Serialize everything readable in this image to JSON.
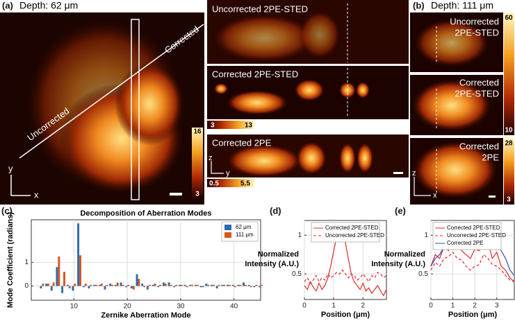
{
  "panel_a": {
    "label": "(a)",
    "depth": "Depth: 62 μm",
    "corrected": "Corrected",
    "uncorrected": "Uncorrected",
    "axis_y": "y",
    "axis_x": "x",
    "colorbar": [
      16,
      3
    ],
    "insets": [
      {
        "title": "Uncorrected 2PE-STED"
      },
      {
        "title": "Corrected 2PE-STED",
        "colorbar": [
          3,
          13
        ]
      },
      {
        "title": "Corrected 2PE",
        "colorbar": [
          0.5,
          5.5
        ],
        "axis_z": "z",
        "axis_y": "y"
      }
    ]
  },
  "panel_b": {
    "label": "(b)",
    "depth": "Depth: 111 μm",
    "axis_z": "z",
    "axis_x": "x",
    "images": [
      {
        "title": [
          "Uncorrected",
          "2PE-STED"
        ],
        "colorbar": [
          60,
          10
        ]
      },
      {
        "title": [
          "Corrected",
          "2PE-STED"
        ]
      },
      {
        "title": [
          "Corrected",
          "2PE"
        ],
        "colorbar": [
          28,
          3
        ]
      }
    ]
  },
  "chart_data": [
    {
      "type": "bar",
      "label": "(c)",
      "title": "Decomposition of Aberration Modes",
      "xlabel": "Zernike Aberration Mode",
      "ylabel": "Mode Coefficient (radians)",
      "x": [
        4,
        5,
        6,
        7,
        8,
        9,
        10,
        11,
        12,
        13,
        14,
        15,
        16,
        17,
        18,
        19,
        20,
        21,
        22,
        23,
        24,
        25,
        26,
        27,
        28,
        29,
        30,
        31,
        32,
        33,
        34,
        35,
        36,
        37,
        38,
        39,
        40,
        41,
        42,
        43,
        44,
        45
      ],
      "series": [
        {
          "name": "62 μm",
          "color": "#2b6cb0",
          "values": [
            -0.1,
            0.1,
            -0.2,
            0.8,
            -0.3,
            0.05,
            -0.2,
            2.65,
            -0.05,
            -0.1,
            0.05,
            0.05,
            -0.15,
            0.1,
            0.05,
            0.15,
            -0.05,
            -0.1,
            0.5,
            0.1,
            -0.15,
            0.05,
            -0.05,
            0.15,
            0.15,
            -0.05,
            0.05,
            0.05,
            0.05,
            0.05,
            -0.05,
            0.1,
            0.05,
            -0.1,
            0.05,
            0.05,
            0.05,
            0.05,
            0.15,
            0.05,
            -0.05,
            -0.05
          ]
        },
        {
          "name": "111 μm",
          "color": "#d9541a",
          "values": [
            0.1,
            0.1,
            0.15,
            1.25,
            0.6,
            -0.1,
            0.1,
            1.3,
            0.1,
            0.05,
            0.05,
            0.1,
            0.05,
            0.05,
            0.15,
            0.05,
            0.05,
            -0.15,
            0.3,
            -0.05,
            0.05,
            0.1,
            0.05,
            0.1,
            0.05,
            0.05,
            0.05,
            -0.05,
            0.05,
            0.05,
            -0.05,
            0.05,
            0.05,
            0.05,
            0.05,
            0.05,
            -0.05,
            0.05,
            0.05,
            -0.05,
            0.05,
            0.05
          ]
        }
      ],
      "xlim": [
        2,
        45
      ],
      "xticks": [
        10,
        20,
        30,
        40
      ],
      "ylim": [
        -0.6,
        2.8
      ],
      "yticks": [
        0,
        1
      ],
      "grid": true,
      "legend": "top-right"
    },
    {
      "type": "line",
      "label": "(d)",
      "xlabel": "Position (μm)",
      "ylabel": [
        "Normalized",
        "Intensity (A.U.)"
      ],
      "x": [
        0,
        0.1,
        0.2,
        0.3,
        0.4,
        0.5,
        0.6,
        0.7,
        0.8,
        0.9,
        1.0,
        1.1,
        1.2,
        1.3,
        1.4,
        1.5,
        1.6,
        1.7,
        1.8,
        1.9,
        2.0,
        2.1,
        2.2,
        2.3,
        2.4,
        2.5,
        2.6,
        2.7,
        2.8
      ],
      "series": [
        {
          "name": "Corrected 2PE-STED",
          "color": "#e3262b",
          "dash": false,
          "values": [
            0.35,
            0.3,
            0.4,
            0.33,
            0.28,
            0.38,
            0.3,
            0.35,
            0.45,
            0.6,
            0.8,
            0.97,
            1.0,
            0.98,
            0.9,
            0.7,
            0.5,
            0.4,
            0.35,
            0.3,
            0.38,
            0.28,
            0.32,
            0.25,
            0.3,
            0.35,
            0.28,
            0.22,
            0.3
          ]
        },
        {
          "name": "Uncorrected 2PE-STED",
          "color": "#e3262b",
          "dash": true,
          "values": [
            0.4,
            0.45,
            0.38,
            0.42,
            0.48,
            0.4,
            0.45,
            0.42,
            0.5,
            0.45,
            0.48,
            0.52,
            0.5,
            0.55,
            0.5,
            0.45,
            0.5,
            0.48,
            0.42,
            0.45,
            0.5,
            0.45,
            0.4,
            0.48,
            0.45,
            0.52,
            0.5,
            0.45,
            0.48
          ]
        }
      ],
      "xlim": [
        0,
        2.8
      ],
      "xticks": [
        0,
        1,
        2
      ],
      "ylim": [
        0.17,
        1.19
      ],
      "yticks": [
        0.5,
        1
      ],
      "grid": true,
      "legend": "top"
    },
    {
      "type": "line",
      "label": "(e)",
      "xlabel": "Position (μm)",
      "ylabel": [
        "Normalized",
        "Intensity (A.U.)"
      ],
      "x": [
        0,
        0.2,
        0.4,
        0.6,
        0.8,
        1.0,
        1.2,
        1.4,
        1.6,
        1.8,
        2.0,
        2.2,
        2.4,
        2.6,
        2.8,
        3.0,
        3.2,
        3.4,
        3.6,
        3.8
      ],
      "series": [
        {
          "name": "Corrected 2PE-STED",
          "color": "#e3262b",
          "dash": false,
          "values": [
            0.6,
            0.75,
            0.7,
            0.85,
            0.8,
            0.9,
            0.95,
            0.8,
            0.75,
            0.7,
            0.82,
            0.8,
            0.98,
            0.9,
            0.7,
            0.78,
            0.6,
            0.55,
            0.45,
            0.4
          ]
        },
        {
          "name": "Uncorrected 2PE-STED",
          "color": "#e3262b",
          "dash": true,
          "values": [
            0.55,
            0.65,
            0.6,
            0.7,
            0.72,
            0.78,
            0.7,
            0.68,
            0.6,
            0.55,
            0.6,
            0.62,
            0.75,
            0.7,
            0.62,
            0.6,
            0.55,
            0.48,
            0.42,
            0.4
          ]
        },
        {
          "name": "Corrected 2PE",
          "color": "#2b4fa8",
          "dash": false,
          "values": [
            0.6,
            0.7,
            0.75,
            0.85,
            0.9,
            0.98,
            0.95,
            0.92,
            0.88,
            0.85,
            0.92,
            0.98,
            1.0,
            0.92,
            0.85,
            0.88,
            0.8,
            0.7,
            0.55,
            0.48
          ]
        }
      ],
      "xlim": [
        0,
        3.8
      ],
      "xticks": [
        0,
        1,
        2,
        3
      ],
      "ylim": [
        0.17,
        1.19
      ],
      "yticks": [
        0.5,
        1
      ],
      "grid": true,
      "legend": "top-left"
    }
  ]
}
